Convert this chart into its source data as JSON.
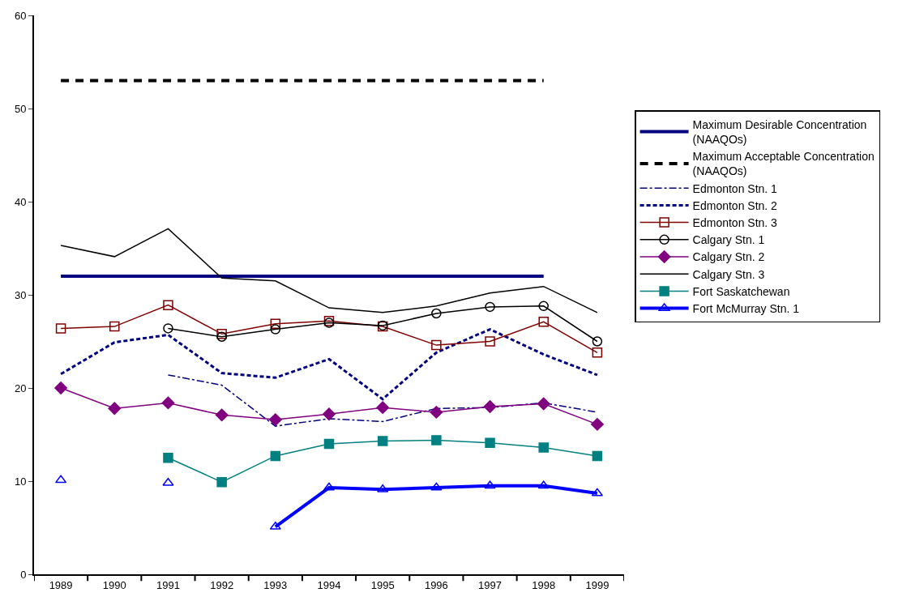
{
  "chart_data": {
    "type": "line",
    "categories": [
      "1989",
      "1990",
      "1991",
      "1992",
      "1993",
      "1994",
      "1995",
      "1996",
      "1997",
      "1998",
      "1999"
    ],
    "ylim": [
      0,
      60
    ],
    "yticks": [
      0,
      10,
      20,
      30,
      40,
      50,
      60
    ],
    "legend": "right",
    "series": [
      {
        "name": "Maximum Desirable Concentration\n(NAAQOs)",
        "color": "#000080",
        "line_style": "solid",
        "marker": "none",
        "values": [
          32,
          32,
          32,
          32,
          32,
          32,
          32,
          32,
          32,
          32,
          null
        ]
      },
      {
        "name": "Maximum Acceptable Concentration\n(NAAQOs)",
        "color": "#000000",
        "line_style": "dashed",
        "marker": "none",
        "values": [
          53,
          53,
          53,
          53,
          53,
          53,
          53,
          53,
          53,
          53,
          null
        ]
      },
      {
        "name": "Edmonton Stn. 1",
        "color": "#000080",
        "line_style": "dashdot",
        "marker": "none",
        "values": [
          null,
          null,
          21.4,
          20.3,
          15.9,
          16.7,
          16.4,
          17.8,
          17.9,
          18.4,
          17.4
        ]
      },
      {
        "name": "Edmonton Stn. 2",
        "color": "#000080",
        "line_style": "dotted",
        "marker": "none",
        "values": [
          21.5,
          24.9,
          25.7,
          21.6,
          21.1,
          23.1,
          18.8,
          23.8,
          26.3,
          23.6,
          21.4
        ]
      },
      {
        "name": "Edmonton Stn. 3",
        "color": "#800000",
        "line_style": "solid",
        "marker": "square-open",
        "values": [
          26.4,
          26.6,
          28.9,
          25.8,
          26.9,
          27.2,
          26.6,
          24.6,
          25.0,
          27.1,
          23.8
        ]
      },
      {
        "name": "Calgary Stn. 1",
        "color": "#000000",
        "line_style": "solid",
        "marker": "circle-open",
        "values": [
          null,
          null,
          26.4,
          25.5,
          26.3,
          27.0,
          26.7,
          28.0,
          28.7,
          28.8,
          25.0
        ]
      },
      {
        "name": "Calgary Stn. 2",
        "color": "#800080",
        "line_style": "solid",
        "marker": "diamond",
        "values": [
          20.0,
          17.8,
          18.4,
          17.1,
          16.6,
          17.2,
          17.9,
          17.4,
          18.0,
          18.3,
          16.1
        ]
      },
      {
        "name": "Calgary Stn. 3",
        "color": "#000000",
        "line_style": "solid",
        "marker": "none",
        "values": [
          35.3,
          34.1,
          37.1,
          31.8,
          31.5,
          28.6,
          28.1,
          28.8,
          30.2,
          30.9,
          28.1
        ]
      },
      {
        "name": "Fort Saskatchewan",
        "color": "#008080",
        "line_style": "solid",
        "marker": "square",
        "values": [
          null,
          null,
          12.5,
          9.9,
          12.7,
          14.0,
          14.3,
          14.4,
          14.1,
          13.6,
          12.7
        ]
      },
      {
        "name": "Fort McMurray Stn. 1",
        "color": "#0000ff",
        "line_style": "solid",
        "marker": "triangle-up-open",
        "values": [
          10.1,
          null,
          9.8,
          null,
          5.1,
          9.3,
          9.1,
          9.3,
          9.5,
          9.5,
          8.7
        ]
      }
    ]
  }
}
